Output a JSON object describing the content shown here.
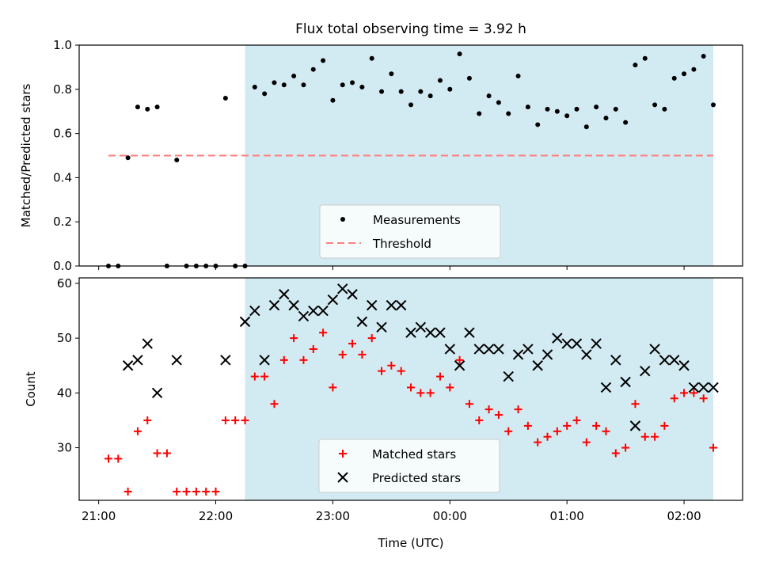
{
  "chart_data": [
    {
      "type": "scatter",
      "title": "Flux total observing time = 3.92 h",
      "ylabel": "Matched/Predicted stars",
      "xlabel": "",
      "ylim": [
        0,
        1.0
      ],
      "yticks": [
        "0.0",
        "0.2",
        "0.4",
        "0.6",
        "0.8",
        "1.0"
      ],
      "shaded_interval": [
        "22:15",
        "02:15"
      ],
      "shade_color": "#add8e6",
      "legend_position": "lower-center",
      "threshold": {
        "name": "Threshold",
        "value": 0.5,
        "x_range": [
          "21:05",
          "02:15"
        ],
        "color": "#ff7f7f"
      },
      "series": [
        {
          "name": "Measurements",
          "color": "#000000",
          "marker": "dot",
          "x": [
            "21:05",
            "21:10",
            "21:15",
            "21:20",
            "21:25",
            "21:30",
            "21:35",
            "21:40",
            "21:45",
            "21:50",
            "21:55",
            "22:00",
            "22:05",
            "22:10",
            "22:15",
            "22:20",
            "22:25",
            "22:30",
            "22:35",
            "22:40",
            "22:45",
            "22:50",
            "22:55",
            "23:00",
            "23:05",
            "23:10",
            "23:15",
            "23:20",
            "23:25",
            "23:30",
            "23:35",
            "23:40",
            "23:45",
            "23:50",
            "23:55",
            "00:00",
            "00:05",
            "00:10",
            "00:15",
            "00:20",
            "00:25",
            "00:30",
            "00:35",
            "00:40",
            "00:45",
            "00:50",
            "00:55",
            "01:00",
            "01:05",
            "01:10",
            "01:15",
            "01:20",
            "01:25",
            "01:30",
            "01:35",
            "01:40",
            "01:45",
            "01:50",
            "01:55",
            "02:00",
            "02:05",
            "02:10",
            "02:15"
          ],
          "y": [
            0.0,
            0.0,
            0.49,
            0.72,
            0.71,
            0.72,
            0.0,
            0.48,
            0.0,
            0.0,
            0.0,
            0.0,
            0.76,
            0.0,
            0.0,
            0.81,
            0.78,
            0.83,
            0.82,
            0.86,
            0.82,
            0.89,
            0.93,
            0.75,
            0.82,
            0.83,
            0.81,
            0.94,
            0.79,
            0.87,
            0.79,
            0.73,
            0.79,
            0.77,
            0.84,
            0.8,
            0.96,
            0.85,
            0.69,
            0.77,
            0.74,
            0.69,
            0.86,
            0.72,
            0.64,
            0.71,
            0.7,
            0.68,
            0.71,
            0.63,
            0.72,
            0.67,
            0.71,
            0.65,
            0.91,
            0.94,
            0.73,
            0.71,
            0.85,
            0.87,
            0.89,
            0.95,
            0.73
          ]
        }
      ]
    },
    {
      "type": "scatter",
      "xlabel": "Time (UTC)",
      "ylabel": "Count",
      "ylim": [
        20.4,
        61.0
      ],
      "yticks": [
        "30",
        "40",
        "50",
        "60"
      ],
      "xticks": [
        "21:00",
        "22:00",
        "23:00",
        "00:00",
        "01:00",
        "02:00"
      ],
      "x_range": [
        "20:50",
        "02:30"
      ],
      "legend_position": "lower-center",
      "series": [
        {
          "name": "Matched stars",
          "color": "#ff0000",
          "marker": "plus",
          "x": [
            "21:05",
            "21:10",
            "21:15",
            "21:20",
            "21:25",
            "21:30",
            "21:35",
            "21:40",
            "21:45",
            "21:50",
            "21:55",
            "22:00",
            "22:05",
            "22:10",
            "22:15",
            "22:20",
            "22:25",
            "22:30",
            "22:35",
            "22:40",
            "22:45",
            "22:50",
            "22:55",
            "23:00",
            "23:05",
            "23:10",
            "23:15",
            "23:20",
            "23:25",
            "23:30",
            "23:35",
            "23:40",
            "23:45",
            "23:50",
            "23:55",
            "00:00",
            "00:05",
            "00:10",
            "00:15",
            "00:20",
            "00:25",
            "00:30",
            "00:35",
            "00:40",
            "00:45",
            "00:50",
            "00:55",
            "01:00",
            "01:05",
            "01:10",
            "01:15",
            "01:20",
            "01:25",
            "01:30",
            "01:35",
            "01:40",
            "01:45",
            "01:50",
            "01:55",
            "02:00",
            "02:05",
            "02:10",
            "02:15"
          ],
          "y": [
            28,
            28,
            22,
            33,
            35,
            29,
            29,
            22,
            22,
            22,
            22,
            22,
            35,
            35,
            35,
            43,
            43,
            38,
            46,
            50,
            46,
            48,
            51,
            41,
            47,
            49,
            47,
            50,
            44,
            45,
            44,
            41,
            40,
            40,
            43,
            41,
            46,
            38,
            35,
            37,
            36,
            33,
            37,
            34,
            31,
            32,
            33,
            34,
            35,
            31,
            34,
            33,
            29,
            30,
            38,
            32,
            32,
            34,
            39,
            40,
            40,
            39,
            30
          ]
        },
        {
          "name": "Predicted stars",
          "color": "#000000",
          "marker": "x",
          "x": [
            "21:15",
            "21:20",
            "21:25",
            "21:30",
            "21:40",
            "22:05",
            "22:15",
            "22:20",
            "22:25",
            "22:30",
            "22:35",
            "22:40",
            "22:45",
            "22:50",
            "22:55",
            "23:00",
            "23:05",
            "23:10",
            "23:15",
            "23:20",
            "23:25",
            "23:30",
            "23:35",
            "23:40",
            "23:45",
            "23:50",
            "23:55",
            "00:00",
            "00:05",
            "00:10",
            "00:15",
            "00:20",
            "00:25",
            "00:30",
            "00:35",
            "00:40",
            "00:45",
            "00:50",
            "00:55",
            "01:00",
            "01:05",
            "01:10",
            "01:15",
            "01:20",
            "01:25",
            "01:30",
            "01:35",
            "01:40",
            "01:45",
            "01:50",
            "01:55",
            "02:00",
            "02:05",
            "02:10",
            "02:15"
          ],
          "y": [
            45,
            46,
            49,
            40,
            46,
            46,
            53,
            55,
            46,
            56,
            58,
            56,
            54,
            55,
            55,
            57,
            59,
            58,
            53,
            56,
            52,
            56,
            56,
            51,
            52,
            51,
            51,
            48,
            45,
            51,
            48,
            48,
            48,
            43,
            47,
            48,
            45,
            47,
            50,
            49,
            49,
            47,
            49,
            41,
            46,
            42,
            34,
            44,
            48,
            46,
            46,
            45,
            41,
            41,
            41
          ]
        }
      ]
    }
  ]
}
